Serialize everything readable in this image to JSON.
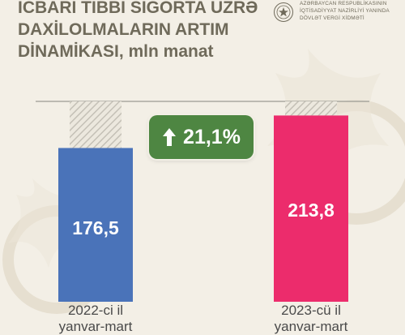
{
  "title_lines": [
    "İCBARİ TİBBİ SIĞORTA ÜZRƏ",
    "DAXİLOLMALARIN ARTIM",
    "DİNAMİKASI, mln manat"
  ],
  "org_lines": [
    "AZƏRBAYCAN RESPUBLİKASININ",
    "İQTİSADİYYAT NAZİRLİYİ YANINDA",
    "DÖVLƏT VERGİ XİDMƏTİ"
  ],
  "growth": {
    "label": "21,1%",
    "icon": "arrow-up-icon"
  },
  "chart_data": {
    "type": "bar",
    "categories": [
      "2022-ci il",
      "2023-cü il"
    ],
    "category_sublabels": [
      "yanvar-mart",
      "yanvar-mart"
    ],
    "values": [
      176.5,
      213.8
    ],
    "value_labels": [
      "176,5",
      "213,8"
    ],
    "colors": [
      "#4a73b9",
      "#ec2c6c"
    ],
    "ylim": [
      0,
      230
    ],
    "grid": false,
    "legend": "none"
  },
  "colors": {
    "background": "#f3efe6",
    "title": "#6f6a5a",
    "growth_badge": "#4e8642"
  }
}
